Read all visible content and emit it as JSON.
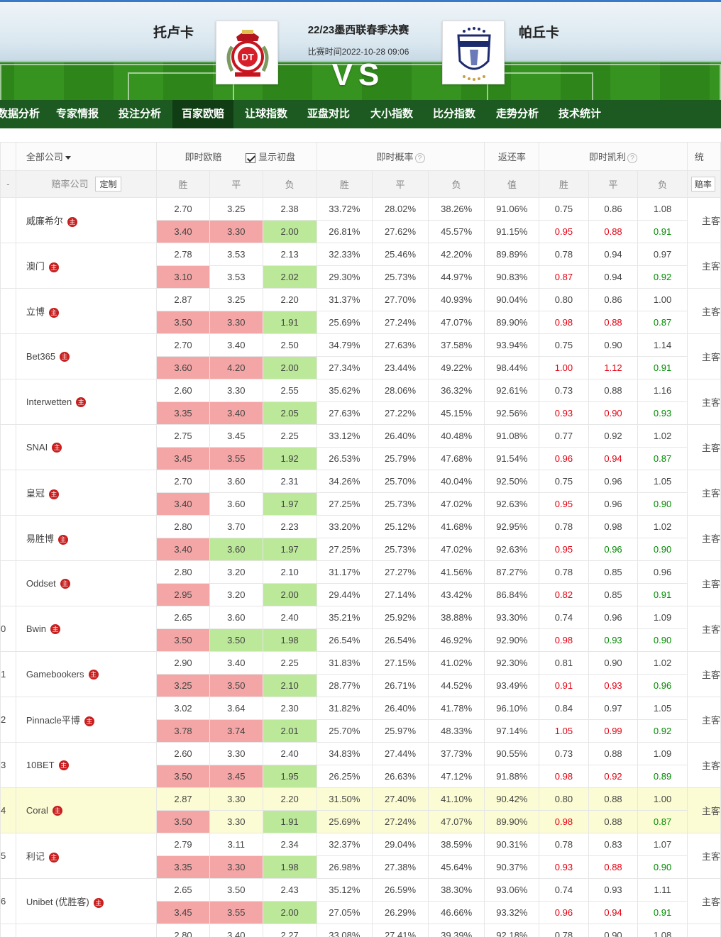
{
  "match": {
    "home": "托卢卡",
    "away": "帕丘卡",
    "league": "22/23墨西联春季决赛",
    "time": "比赛时间2022-10-28 09:06",
    "vs": "VS"
  },
  "nav": [
    "数据分析",
    "专家情报",
    "投注分析",
    "百家欧赔",
    "让球指数",
    "亚盘对比",
    "大小指数",
    "比分指数",
    "走势分析",
    "技术统计"
  ],
  "header": {
    "all_companies": "全部公司",
    "instant_odds": "即时欧赔",
    "show_initial": "显示初盘",
    "instant_prob": "即时概率",
    "return_rate": "返还率",
    "instant_kelly": "即时凯利",
    "stats_cut": "统",
    "company_col": "赔率公司",
    "customize": "定制",
    "win": "胜",
    "draw": "平",
    "lose": "负",
    "value": "值",
    "bk_cut": "赔率"
  },
  "colors": {
    "nav_bg": "#1c5a22",
    "nav_active": "#103d14",
    "pink": "#f4a6a6",
    "green": "#bce89a",
    "red_text": "#e60012",
    "green_text": "#008c00",
    "highlight": "#fcfcd4"
  },
  "rows": [
    {
      "idx": "",
      "company": "威廉希尔",
      "badge": "主",
      "main": "主客",
      "init": {
        "odds": [
          "2.70",
          "3.25",
          "2.38"
        ],
        "prob": [
          "33.72%",
          "28.02%",
          "38.26%"
        ],
        "ret": "91.06%",
        "kelly": [
          "0.75",
          "0.86",
          "1.08"
        ]
      },
      "live": {
        "odds": [
          "3.40",
          "3.30",
          "2.00"
        ],
        "prob": [
          "26.81%",
          "27.62%",
          "45.57%"
        ],
        "ret": "91.15%",
        "kelly": [
          "0.95",
          "0.88",
          "0.91"
        ]
      },
      "oc": [
        "pk",
        "pk",
        "gr"
      ],
      "kc": [
        "red",
        "red",
        "grn"
      ]
    },
    {
      "idx": "",
      "company": "澳门",
      "badge": "主",
      "main": "主客",
      "init": {
        "odds": [
          "2.78",
          "3.53",
          "2.13"
        ],
        "prob": [
          "32.33%",
          "25.46%",
          "42.20%"
        ],
        "ret": "89.89%",
        "kelly": [
          "0.78",
          "0.94",
          "0.97"
        ]
      },
      "live": {
        "odds": [
          "3.10",
          "3.53",
          "2.02"
        ],
        "prob": [
          "29.30%",
          "25.73%",
          "44.97%"
        ],
        "ret": "90.83%",
        "kelly": [
          "0.87",
          "0.94",
          "0.92"
        ]
      },
      "oc": [
        "pk",
        "",
        "gr"
      ],
      "kc": [
        "red",
        "",
        "grn"
      ]
    },
    {
      "idx": "",
      "company": "立博",
      "badge": "主",
      "main": "主客",
      "init": {
        "odds": [
          "2.87",
          "3.25",
          "2.20"
        ],
        "prob": [
          "31.37%",
          "27.70%",
          "40.93%"
        ],
        "ret": "90.04%",
        "kelly": [
          "0.80",
          "0.86",
          "1.00"
        ]
      },
      "live": {
        "odds": [
          "3.50",
          "3.30",
          "1.91"
        ],
        "prob": [
          "25.69%",
          "27.24%",
          "47.07%"
        ],
        "ret": "89.90%",
        "kelly": [
          "0.98",
          "0.88",
          "0.87"
        ]
      },
      "oc": [
        "pk",
        "pk",
        "gr"
      ],
      "kc": [
        "red",
        "red",
        "grn"
      ]
    },
    {
      "idx": "",
      "company": "Bet365",
      "badge": "主",
      "main": "主客",
      "init": {
        "odds": [
          "2.70",
          "3.40",
          "2.50"
        ],
        "prob": [
          "34.79%",
          "27.63%",
          "37.58%"
        ],
        "ret": "93.94%",
        "kelly": [
          "0.75",
          "0.90",
          "1.14"
        ]
      },
      "live": {
        "odds": [
          "3.60",
          "4.20",
          "2.00"
        ],
        "prob": [
          "27.34%",
          "23.44%",
          "49.22%"
        ],
        "ret": "98.44%",
        "kelly": [
          "1.00",
          "1.12",
          "0.91"
        ]
      },
      "oc": [
        "pk",
        "pk",
        "gr"
      ],
      "kc": [
        "red",
        "red",
        "grn"
      ]
    },
    {
      "idx": "",
      "company": "Interwetten",
      "badge": "主",
      "main": "主客",
      "init": {
        "odds": [
          "2.60",
          "3.30",
          "2.55"
        ],
        "prob": [
          "35.62%",
          "28.06%",
          "36.32%"
        ],
        "ret": "92.61%",
        "kelly": [
          "0.73",
          "0.88",
          "1.16"
        ]
      },
      "live": {
        "odds": [
          "3.35",
          "3.40",
          "2.05"
        ],
        "prob": [
          "27.63%",
          "27.22%",
          "45.15%"
        ],
        "ret": "92.56%",
        "kelly": [
          "0.93",
          "0.90",
          "0.93"
        ]
      },
      "oc": [
        "pk",
        "pk",
        "gr"
      ],
      "kc": [
        "red",
        "red",
        "grn"
      ]
    },
    {
      "idx": "",
      "company": "SNAI",
      "badge": "主",
      "main": "主客",
      "init": {
        "odds": [
          "2.75",
          "3.45",
          "2.25"
        ],
        "prob": [
          "33.12%",
          "26.40%",
          "40.48%"
        ],
        "ret": "91.08%",
        "kelly": [
          "0.77",
          "0.92",
          "1.02"
        ]
      },
      "live": {
        "odds": [
          "3.45",
          "3.55",
          "1.92"
        ],
        "prob": [
          "26.53%",
          "25.79%",
          "47.68%"
        ],
        "ret": "91.54%",
        "kelly": [
          "0.96",
          "0.94",
          "0.87"
        ]
      },
      "oc": [
        "pk",
        "pk",
        "gr"
      ],
      "kc": [
        "red",
        "red",
        "grn"
      ]
    },
    {
      "idx": "",
      "company": "皇冠",
      "badge": "主",
      "main": "主客",
      "init": {
        "odds": [
          "2.70",
          "3.60",
          "2.31"
        ],
        "prob": [
          "34.26%",
          "25.70%",
          "40.04%"
        ],
        "ret": "92.50%",
        "kelly": [
          "0.75",
          "0.96",
          "1.05"
        ]
      },
      "live": {
        "odds": [
          "3.40",
          "3.60",
          "1.97"
        ],
        "prob": [
          "27.25%",
          "25.73%",
          "47.02%"
        ],
        "ret": "92.63%",
        "kelly": [
          "0.95",
          "0.96",
          "0.90"
        ]
      },
      "oc": [
        "pk",
        "",
        "gr"
      ],
      "kc": [
        "red",
        "",
        "grn"
      ]
    },
    {
      "idx": "",
      "company": "易胜博",
      "badge": "主",
      "main": "主客",
      "init": {
        "odds": [
          "2.80",
          "3.70",
          "2.23"
        ],
        "prob": [
          "33.20%",
          "25.12%",
          "41.68%"
        ],
        "ret": "92.95%",
        "kelly": [
          "0.78",
          "0.98",
          "1.02"
        ]
      },
      "live": {
        "odds": [
          "3.40",
          "3.60",
          "1.97"
        ],
        "prob": [
          "27.25%",
          "25.73%",
          "47.02%"
        ],
        "ret": "92.63%",
        "kelly": [
          "0.95",
          "0.96",
          "0.90"
        ]
      },
      "oc": [
        "pk",
        "gr",
        "gr"
      ],
      "kc": [
        "red",
        "grn",
        "grn"
      ]
    },
    {
      "idx": "",
      "company": "Oddset",
      "badge": "主",
      "main": "主客",
      "init": {
        "odds": [
          "2.80",
          "3.20",
          "2.10"
        ],
        "prob": [
          "31.17%",
          "27.27%",
          "41.56%"
        ],
        "ret": "87.27%",
        "kelly": [
          "0.78",
          "0.85",
          "0.96"
        ]
      },
      "live": {
        "odds": [
          "2.95",
          "3.20",
          "2.00"
        ],
        "prob": [
          "29.44%",
          "27.14%",
          "43.42%"
        ],
        "ret": "86.84%",
        "kelly": [
          "0.82",
          "0.85",
          "0.91"
        ]
      },
      "oc": [
        "pk",
        "",
        "gr"
      ],
      "kc": [
        "red",
        "",
        "grn"
      ]
    },
    {
      "idx": "0",
      "company": "Bwin",
      "badge": "主",
      "main": "主客",
      "init": {
        "odds": [
          "2.65",
          "3.60",
          "2.40"
        ],
        "prob": [
          "35.21%",
          "25.92%",
          "38.88%"
        ],
        "ret": "93.30%",
        "kelly": [
          "0.74",
          "0.96",
          "1.09"
        ]
      },
      "live": {
        "odds": [
          "3.50",
          "3.50",
          "1.98"
        ],
        "prob": [
          "26.54%",
          "26.54%",
          "46.92%"
        ],
        "ret": "92.90%",
        "kelly": [
          "0.98",
          "0.93",
          "0.90"
        ]
      },
      "oc": [
        "pk",
        "gr",
        "gr"
      ],
      "kc": [
        "red",
        "grn",
        "grn"
      ]
    },
    {
      "idx": "1",
      "company": "Gamebookers",
      "badge": "主",
      "main": "主客",
      "init": {
        "odds": [
          "2.90",
          "3.40",
          "2.25"
        ],
        "prob": [
          "31.83%",
          "27.15%",
          "41.02%"
        ],
        "ret": "92.30%",
        "kelly": [
          "0.81",
          "0.90",
          "1.02"
        ]
      },
      "live": {
        "odds": [
          "3.25",
          "3.50",
          "2.10"
        ],
        "prob": [
          "28.77%",
          "26.71%",
          "44.52%"
        ],
        "ret": "93.49%",
        "kelly": [
          "0.91",
          "0.93",
          "0.96"
        ]
      },
      "oc": [
        "pk",
        "pk",
        "gr"
      ],
      "kc": [
        "red",
        "red",
        "grn"
      ]
    },
    {
      "idx": "2",
      "company": "Pinnacle平博",
      "badge": "主",
      "main": "主客",
      "init": {
        "odds": [
          "3.02",
          "3.64",
          "2.30"
        ],
        "prob": [
          "31.82%",
          "26.40%",
          "41.78%"
        ],
        "ret": "96.10%",
        "kelly": [
          "0.84",
          "0.97",
          "1.05"
        ]
      },
      "live": {
        "odds": [
          "3.78",
          "3.74",
          "2.01"
        ],
        "prob": [
          "25.70%",
          "25.97%",
          "48.33%"
        ],
        "ret": "97.14%",
        "kelly": [
          "1.05",
          "0.99",
          "0.92"
        ]
      },
      "oc": [
        "pk",
        "pk",
        "gr"
      ],
      "kc": [
        "red",
        "red",
        "grn"
      ]
    },
    {
      "idx": "3",
      "company": "10BET",
      "badge": "主",
      "main": "主客",
      "init": {
        "odds": [
          "2.60",
          "3.30",
          "2.40"
        ],
        "prob": [
          "34.83%",
          "27.44%",
          "37.73%"
        ],
        "ret": "90.55%",
        "kelly": [
          "0.73",
          "0.88",
          "1.09"
        ]
      },
      "live": {
        "odds": [
          "3.50",
          "3.45",
          "1.95"
        ],
        "prob": [
          "26.25%",
          "26.63%",
          "47.12%"
        ],
        "ret": "91.88%",
        "kelly": [
          "0.98",
          "0.92",
          "0.89"
        ]
      },
      "oc": [
        "pk",
        "pk",
        "gr"
      ],
      "kc": [
        "red",
        "red",
        "grn"
      ]
    },
    {
      "idx": "4",
      "company": "Coral",
      "badge": "主",
      "main": "主客",
      "hl": true,
      "init": {
        "odds": [
          "2.87",
          "3.30",
          "2.20"
        ],
        "prob": [
          "31.50%",
          "27.40%",
          "41.10%"
        ],
        "ret": "90.42%",
        "kelly": [
          "0.80",
          "0.88",
          "1.00"
        ]
      },
      "live": {
        "odds": [
          "3.50",
          "3.30",
          "1.91"
        ],
        "prob": [
          "25.69%",
          "27.24%",
          "47.07%"
        ],
        "ret": "89.90%",
        "kelly": [
          "0.98",
          "0.88",
          "0.87"
        ]
      },
      "oc": [
        "pk",
        "",
        "gr"
      ],
      "kc": [
        "red",
        "",
        "grn"
      ]
    },
    {
      "idx": "5",
      "company": "利记",
      "badge": "主",
      "main": "主客",
      "init": {
        "odds": [
          "2.79",
          "3.11",
          "2.34"
        ],
        "prob": [
          "32.37%",
          "29.04%",
          "38.59%"
        ],
        "ret": "90.31%",
        "kelly": [
          "0.78",
          "0.83",
          "1.07"
        ]
      },
      "live": {
        "odds": [
          "3.35",
          "3.30",
          "1.98"
        ],
        "prob": [
          "26.98%",
          "27.38%",
          "45.64%"
        ],
        "ret": "90.37%",
        "kelly": [
          "0.93",
          "0.88",
          "0.90"
        ]
      },
      "oc": [
        "pk",
        "pk",
        "gr"
      ],
      "kc": [
        "red",
        "red",
        "grn"
      ]
    },
    {
      "idx": "6",
      "company": "Unibet (优胜客)",
      "badge": "主",
      "main": "主客",
      "init": {
        "odds": [
          "2.65",
          "3.50",
          "2.43"
        ],
        "prob": [
          "35.12%",
          "26.59%",
          "38.30%"
        ],
        "ret": "93.06%",
        "kelly": [
          "0.74",
          "0.93",
          "1.11"
        ]
      },
      "live": {
        "odds": [
          "3.45",
          "3.55",
          "2.00"
        ],
        "prob": [
          "27.05%",
          "26.29%",
          "46.66%"
        ],
        "ret": "93.32%",
        "kelly": [
          "0.96",
          "0.94",
          "0.91"
        ]
      },
      "oc": [
        "pk",
        "pk",
        "gr"
      ],
      "kc": [
        "red",
        "red",
        "grn"
      ]
    },
    {
      "idx": "",
      "company": "",
      "badge": "",
      "main": "",
      "init": {
        "odds": [
          "2.80",
          "3.40",
          "2.27"
        ],
        "prob": [
          "33.08%",
          "27.41%",
          "39.39%"
        ],
        "ret": "92.18%",
        "kelly": [
          "0.78",
          "0.90",
          "1.08"
        ]
      },
      "live": {
        "odds": [
          "",
          "",
          ""
        ],
        "prob": [
          "",
          "",
          ""
        ],
        "ret": "",
        "kelly": [
          "",
          "",
          ""
        ]
      },
      "oc": [
        "",
        "",
        ""
      ],
      "kc": [
        "",
        "",
        ""
      ]
    }
  ]
}
